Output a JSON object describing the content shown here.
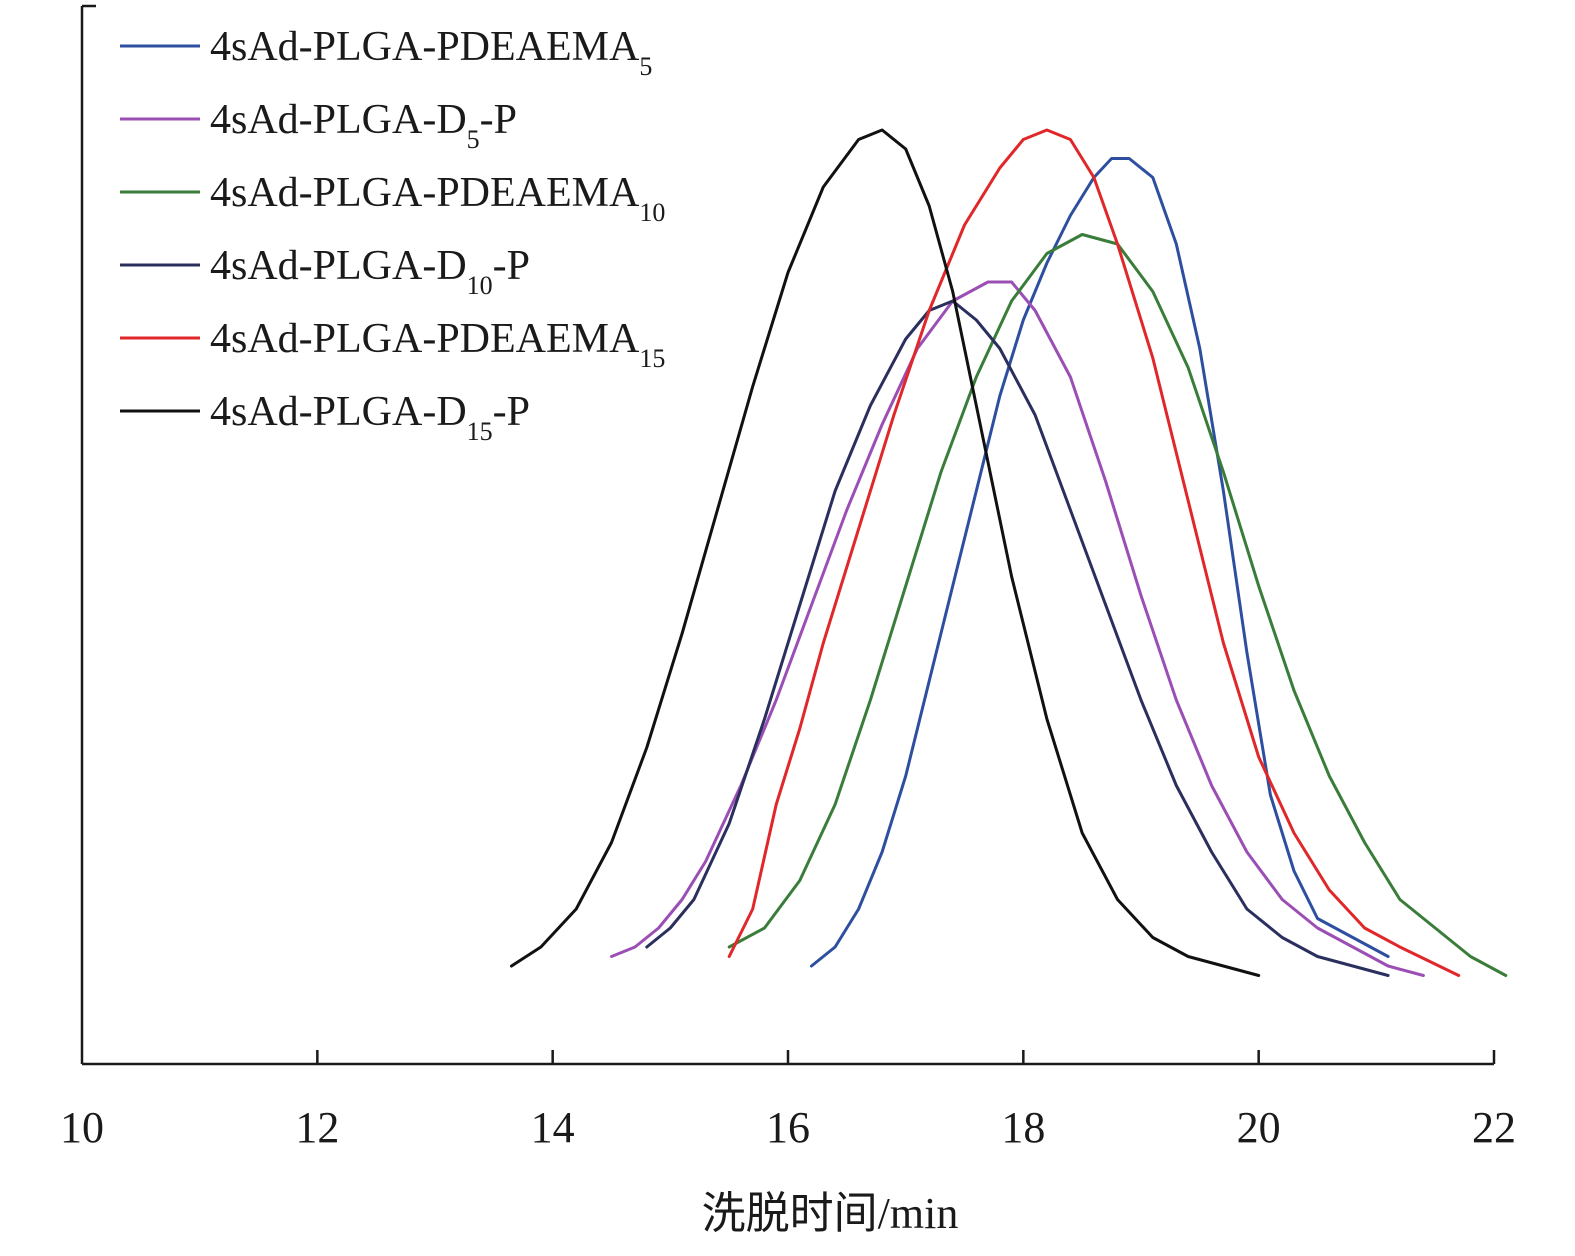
{
  "chart_data": {
    "type": "line",
    "title": "",
    "xlabel": "洗脱时间/min",
    "ylabel": "",
    "xlim": [
      10,
      22
    ],
    "ylim": [
      0,
      1
    ],
    "xticks": [
      "10",
      "12",
      "14",
      "16",
      "18",
      "20",
      "22"
    ],
    "grid": false,
    "legend_position": "top-left",
    "series": [
      {
        "name": "4sAd-PLGA-PDEAEMA",
        "sub": "5",
        "suffix": "",
        "color": "#2e4fa0",
        "x": [
          16.2,
          16.4,
          16.6,
          16.8,
          17.0,
          17.2,
          17.4,
          17.6,
          17.8,
          18.0,
          18.2,
          18.4,
          18.6,
          18.75,
          18.9,
          19.1,
          19.3,
          19.5,
          19.7,
          19.9,
          20.1,
          20.3,
          20.5,
          20.8,
          21.1
        ],
        "y": [
          0.12,
          0.14,
          0.18,
          0.24,
          0.32,
          0.42,
          0.52,
          0.62,
          0.72,
          0.8,
          0.86,
          0.91,
          0.95,
          0.97,
          0.97,
          0.95,
          0.88,
          0.77,
          0.62,
          0.45,
          0.3,
          0.22,
          0.17,
          0.15,
          0.13
        ]
      },
      {
        "name": "4sAd-PLGA-D",
        "sub": "5",
        "suffix": "-P",
        "color": "#9b4fb5",
        "x": [
          14.5,
          14.7,
          14.9,
          15.1,
          15.3,
          15.6,
          15.9,
          16.2,
          16.5,
          16.8,
          17.1,
          17.4,
          17.7,
          17.9,
          18.1,
          18.4,
          18.7,
          19.0,
          19.3,
          19.6,
          19.9,
          20.2,
          20.5,
          20.8,
          21.1,
          21.4
        ],
        "y": [
          0.13,
          0.14,
          0.16,
          0.19,
          0.23,
          0.31,
          0.4,
          0.5,
          0.6,
          0.69,
          0.77,
          0.82,
          0.84,
          0.84,
          0.81,
          0.74,
          0.63,
          0.51,
          0.4,
          0.31,
          0.24,
          0.19,
          0.16,
          0.14,
          0.12,
          0.11
        ]
      },
      {
        "name": "4sAd-PLGA-PDEAEMA",
        "sub": "10",
        "suffix": "",
        "color": "#3a7d3a",
        "x": [
          15.5,
          15.8,
          16.1,
          16.4,
          16.7,
          17.0,
          17.3,
          17.6,
          17.9,
          18.2,
          18.5,
          18.8,
          19.1,
          19.4,
          19.7,
          20.0,
          20.3,
          20.6,
          20.9,
          21.2,
          21.5,
          21.8,
          22.1
        ],
        "y": [
          0.14,
          0.16,
          0.21,
          0.29,
          0.4,
          0.52,
          0.64,
          0.74,
          0.82,
          0.87,
          0.89,
          0.88,
          0.83,
          0.75,
          0.64,
          0.52,
          0.41,
          0.32,
          0.25,
          0.19,
          0.16,
          0.13,
          0.11
        ]
      },
      {
        "name": "4sAd-PLGA-D",
        "sub": "10",
        "suffix": "-P",
        "color": "#2a2f5e",
        "x": [
          14.8,
          15.0,
          15.2,
          15.5,
          15.8,
          16.1,
          16.4,
          16.7,
          17.0,
          17.2,
          17.4,
          17.6,
          17.8,
          18.1,
          18.4,
          18.7,
          19.0,
          19.3,
          19.6,
          19.9,
          20.2,
          20.5,
          20.8,
          21.1
        ],
        "y": [
          0.14,
          0.16,
          0.19,
          0.27,
          0.38,
          0.5,
          0.62,
          0.71,
          0.78,
          0.81,
          0.82,
          0.8,
          0.77,
          0.7,
          0.6,
          0.5,
          0.4,
          0.31,
          0.24,
          0.18,
          0.15,
          0.13,
          0.12,
          0.11
        ]
      },
      {
        "name": "4sAd-PLGA-PDEAEMA",
        "sub": "15",
        "suffix": "",
        "color": "#e0272a",
        "x": [
          15.5,
          15.7,
          15.9,
          16.1,
          16.3,
          16.6,
          16.9,
          17.2,
          17.5,
          17.8,
          18.0,
          18.2,
          18.4,
          18.6,
          18.8,
          19.1,
          19.4,
          19.7,
          20.0,
          20.3,
          20.6,
          20.9,
          21.2,
          21.7
        ],
        "y": [
          0.13,
          0.18,
          0.29,
          0.37,
          0.46,
          0.58,
          0.7,
          0.81,
          0.9,
          0.96,
          0.99,
          1.0,
          0.99,
          0.95,
          0.88,
          0.76,
          0.61,
          0.46,
          0.34,
          0.26,
          0.2,
          0.16,
          0.14,
          0.11
        ]
      },
      {
        "name": "4sAd-PLGA-D",
        "sub": "15",
        "suffix": "-P",
        "color": "#111111",
        "x": [
          13.65,
          13.9,
          14.2,
          14.5,
          14.8,
          15.1,
          15.4,
          15.7,
          16.0,
          16.3,
          16.6,
          16.8,
          17.0,
          17.2,
          17.4,
          17.6,
          17.9,
          18.2,
          18.5,
          18.8,
          19.1,
          19.4,
          19.7,
          20.0
        ],
        "y": [
          0.12,
          0.14,
          0.18,
          0.25,
          0.35,
          0.47,
          0.6,
          0.73,
          0.85,
          0.94,
          0.99,
          1.0,
          0.98,
          0.92,
          0.83,
          0.71,
          0.53,
          0.38,
          0.26,
          0.19,
          0.15,
          0.13,
          0.12,
          0.11
        ]
      }
    ]
  }
}
